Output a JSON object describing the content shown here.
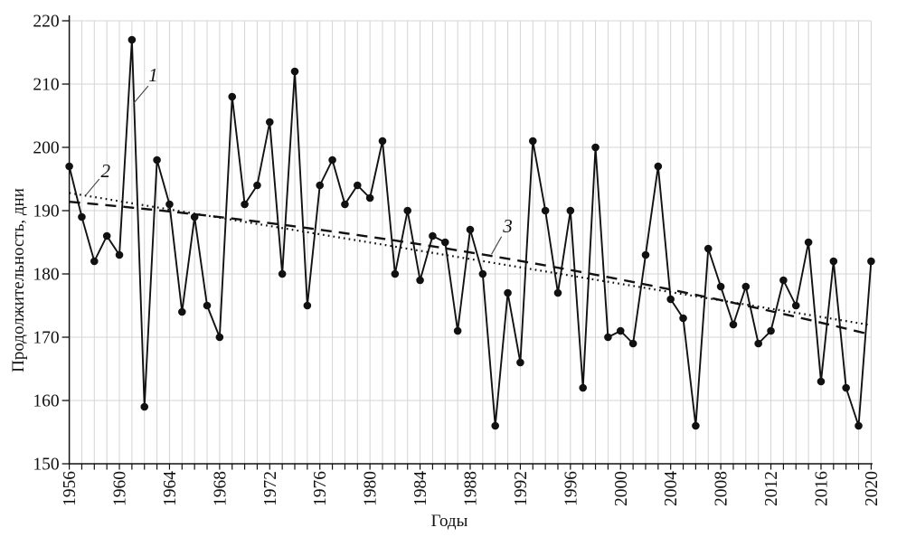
{
  "chart_data": {
    "type": "line",
    "title": "",
    "xlabel": "Годы",
    "ylabel": "Продолжительность, дни",
    "x_range": [
      1956,
      2020
    ],
    "ylim": [
      150,
      220
    ],
    "y_ticks": [
      150,
      160,
      170,
      180,
      190,
      200,
      210,
      220
    ],
    "x_tick_labels": [
      1956,
      1960,
      1964,
      1968,
      1972,
      1976,
      1980,
      1984,
      1988,
      1992,
      1996,
      2000,
      2004,
      2008,
      2012,
      2016,
      2020
    ],
    "grid": true,
    "legend_position": "none",
    "series": [
      {
        "label": "1",
        "name": "annual-duration-observed",
        "type": "line-markers",
        "x_start": 1956,
        "values": [
          197,
          189,
          182,
          186,
          183,
          217,
          159,
          198,
          191,
          174,
          189,
          175,
          170,
          208,
          191,
          194,
          204,
          180,
          212,
          175,
          194,
          198,
          191,
          194,
          192,
          201,
          180,
          190,
          179,
          186,
          185,
          171,
          187,
          180,
          156,
          177,
          166,
          201,
          190,
          177,
          190,
          162,
          200,
          170,
          171,
          169,
          183,
          197,
          176,
          173,
          156,
          184,
          178,
          172,
          178,
          169,
          171,
          179,
          175,
          185,
          163,
          182,
          162,
          156,
          182
        ]
      },
      {
        "label": "2",
        "name": "linear-trend",
        "type": "dotted-line",
        "x": [
          1956,
          2020
        ],
        "values": [
          192.8,
          171.9
        ]
      },
      {
        "label": "3",
        "name": "polynomial-trend",
        "type": "dashed-curve",
        "x": [
          1956,
          1988,
          2020
        ],
        "values": [
          191.4,
          183.4,
          170.4
        ]
      }
    ],
    "annotations": [
      {
        "label": "1",
        "text_at": [
          1962.7,
          211.4
        ],
        "leader": [
          [
            1962.3,
            209.7
          ],
          [
            1961.15,
            207.0
          ]
        ]
      },
      {
        "label": "2",
        "text_at": [
          1958.9,
          196.3
        ],
        "leader": [
          [
            1958.4,
            195.0
          ],
          [
            1957.3,
            192.4
          ]
        ]
      },
      {
        "label": "3",
        "text_at": [
          1991.0,
          187.6
        ],
        "leader": [
          [
            1990.5,
            185.9
          ],
          [
            1989.7,
            183.1
          ]
        ]
      }
    ]
  }
}
